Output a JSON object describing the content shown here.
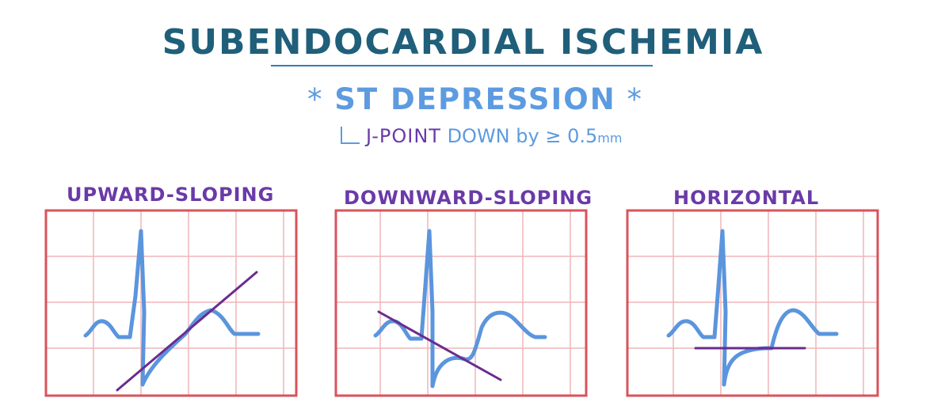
{
  "title": "SUBENDOCARDIAL ISCHEMIA",
  "subtitle": {
    "star_left": "*",
    "text": "ST DEPRESSION",
    "star_right": "*"
  },
  "note": {
    "j_point": "J-POINT",
    "rest": "DOWN by ≥ 0.5",
    "unit": "mm"
  },
  "panels": [
    {
      "label": "UPWARD-SLOPING"
    },
    {
      "label": "DOWNWARD-SLOPING"
    },
    {
      "label": "HORIZONTAL"
    }
  ],
  "colors": {
    "grid_border": "#d9535b",
    "grid_lines": "#f1b6b8",
    "ecg_trace": "#5b95dd",
    "st_line": "#6a2c8f",
    "title": "#1f5f7a",
    "subtitle": "#5d9be0",
    "label": "#6a3aa8"
  }
}
